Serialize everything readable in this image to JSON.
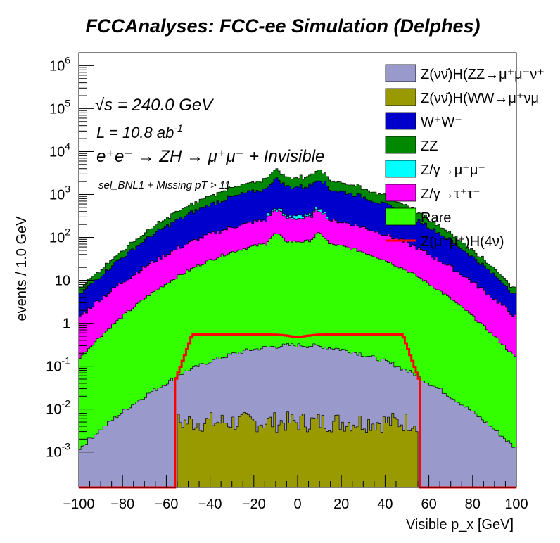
{
  "chart_data": {
    "type": "stacked-step-histogram",
    "title": "FCCAnalyses: FCC-ee Simulation (Delphes)",
    "xlabel": "Visible p_x [GeV]",
    "ylabel": "events / 1.0 GeV",
    "xlim": [
      -100,
      100
    ],
    "ylim": [
      0.00015,
      2000000
    ],
    "yscale": "log",
    "grid": false,
    "legend_position": "top-right",
    "annotations": {
      "sqrt_s": "240.0 GeV",
      "lumi": "10.8 ab",
      "lumi_exp": "-1",
      "process": "ZH → μ⁺μ⁻ + Invisible",
      "selection": "sel_BNL1 + Missing pT > 11"
    },
    "x_ticks": [
      -100,
      -80,
      -60,
      -40,
      -20,
      0,
      20,
      40,
      60,
      80,
      100
    ],
    "y_ticks": [
      {
        "label": "10",
        "exp": "-3",
        "value": 0.001
      },
      {
        "label": "10",
        "exp": "-2",
        "value": 0.01
      },
      {
        "label": "10",
        "exp": "-1",
        "value": 0.1
      },
      {
        "label": "1",
        "exp": "",
        "value": 1
      },
      {
        "label": "10",
        "exp": "",
        "value": 10
      },
      {
        "label": "10",
        "exp": "2",
        "value": 100
      },
      {
        "label": "10",
        "exp": "3",
        "value": 1000
      },
      {
        "label": "10",
        "exp": "4",
        "value": 10000
      },
      {
        "label": "10",
        "exp": "5",
        "value": 100000
      },
      {
        "label": "10",
        "exp": "6",
        "value": 1000000
      }
    ],
    "series": [
      {
        "name": "Z(νν̄)H(WW→μ⁺νμ⁻ν̄)",
        "color": "#999900",
        "profile": {
          "kind": "flat",
          "peak": 0.005,
          "edge": 55,
          "noise": 0.55
        }
      },
      {
        "name": "Z(νν̄)H(ZZ→μ⁺μ⁻νν̄)",
        "color": "#9999cc",
        "profile": {
          "kind": "gauss",
          "peak": 0.3,
          "sigma": 30,
          "noise": 0.12
        }
      },
      {
        "name": "Rare",
        "color": "#33ff00",
        "profile": {
          "kind": "dome",
          "peak": 80,
          "edge": 0.15,
          "noise": 0.08
        }
      },
      {
        "name": "Z/γ→τ⁺τ⁻",
        "color": "#ff00ff",
        "profile": {
          "kind": "dome",
          "peak": 200,
          "edge": 1.2,
          "noise": 0.15
        }
      },
      {
        "name": "Z/γ→μ⁺μ⁻",
        "color": "#00ffff",
        "profile": {
          "kind": "window",
          "peak": 40,
          "lo": -14,
          "hi": 14,
          "noise": 0.6
        }
      },
      {
        "name": "W⁺W⁻",
        "color": "#0000cc",
        "profile": {
          "kind": "dome",
          "peak": 1200,
          "edge": 3,
          "noise": 0.15
        }
      },
      {
        "name": "ZZ",
        "color": "#008800",
        "profile": {
          "kind": "dome",
          "peak": 1000,
          "edge": 1.5,
          "noise": 0.18
        }
      }
    ],
    "signal": {
      "name": "Z(μ⁻μ⁺)H(4ν)",
      "color": "#ff0000",
      "plateau": 0.55,
      "edge": 56,
      "floor": 0.00015
    },
    "legend": [
      {
        "label": "Z(νν̄)H(ZZ→μ⁺μ⁻ν⁺",
        "color": "#9999cc",
        "kind": "box"
      },
      {
        "label": "Z(νν̄)H(WW→μ⁺νμ",
        "color": "#999900",
        "kind": "box"
      },
      {
        "label": "W⁺W⁻",
        "color": "#0000cc",
        "kind": "box"
      },
      {
        "label": "ZZ",
        "color": "#008800",
        "kind": "box"
      },
      {
        "label": "Z/γ→μ⁺μ⁻",
        "color": "#00ffff",
        "kind": "box"
      },
      {
        "label": "Z/γ→τ⁺τ⁻",
        "color": "#ff00ff",
        "kind": "box"
      },
      {
        "label": "Rare",
        "color": "#33ff00",
        "kind": "box"
      },
      {
        "label": "Z(μ⁻μ⁺)H(4ν)",
        "color": "#ff0000",
        "kind": "line"
      }
    ]
  }
}
